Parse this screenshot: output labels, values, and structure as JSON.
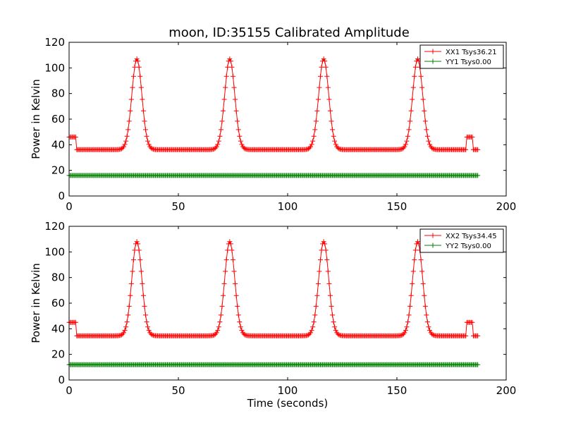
{
  "figure_title": "moon, ID:35155 Calibrated Amplitude",
  "colors": {
    "xx": "#ff0000",
    "yy": "#008000"
  },
  "chart_data": [
    {
      "type": "line",
      "title": "moon, ID:35155 Calibrated Amplitude",
      "xlabel": "",
      "ylabel": "Power in Kelvin",
      "xlim": [
        0,
        200
      ],
      "ylim": [
        0,
        120
      ],
      "xticks": [
        0,
        50,
        100,
        150,
        200
      ],
      "yticks": [
        0,
        20,
        40,
        60,
        80,
        100,
        120
      ],
      "grid": false,
      "legend_position": "top-right",
      "marker": "plus",
      "series": [
        {
          "name": "XX1 Tsys36.21",
          "color": "#ff0000",
          "baseline": 36.2,
          "x_end": 187,
          "segments": [
            [
              0,
              3,
              46
            ],
            [
              182,
              184.5,
              46
            ]
          ],
          "peaks": [
            {
              "x": 31,
              "y": 107
            },
            {
              "x": 73.5,
              "y": 107
            },
            {
              "x": 116.5,
              "y": 107
            },
            {
              "x": 159.5,
              "y": 107
            }
          ]
        },
        {
          "name": "YY1 Tsys0.00",
          "color": "#008000",
          "baseline": 16,
          "x_end": 187,
          "segments": [],
          "peaks": []
        }
      ]
    },
    {
      "type": "line",
      "title": "",
      "xlabel": "Time (seconds)",
      "ylabel": "Power in Kelvin",
      "xlim": [
        0,
        200
      ],
      "ylim": [
        0,
        120
      ],
      "xticks": [
        0,
        50,
        100,
        150,
        200
      ],
      "yticks": [
        0,
        20,
        40,
        60,
        80,
        100,
        120
      ],
      "grid": false,
      "legend_position": "top-right",
      "marker": "plus",
      "series": [
        {
          "name": "XX2 Tsys34.45",
          "color": "#ff0000",
          "baseline": 34.5,
          "x_end": 187,
          "segments": [
            [
              0,
              3,
              45
            ],
            [
              182,
              184.5,
              45
            ]
          ],
          "peaks": [
            {
              "x": 31,
              "y": 108
            },
            {
              "x": 73.5,
              "y": 108
            },
            {
              "x": 116.5,
              "y": 108
            },
            {
              "x": 159.5,
              "y": 108
            }
          ]
        },
        {
          "name": "YY2 Tsys0.00",
          "color": "#008000",
          "baseline": 12,
          "x_end": 187,
          "segments": [],
          "peaks": []
        }
      ]
    }
  ]
}
